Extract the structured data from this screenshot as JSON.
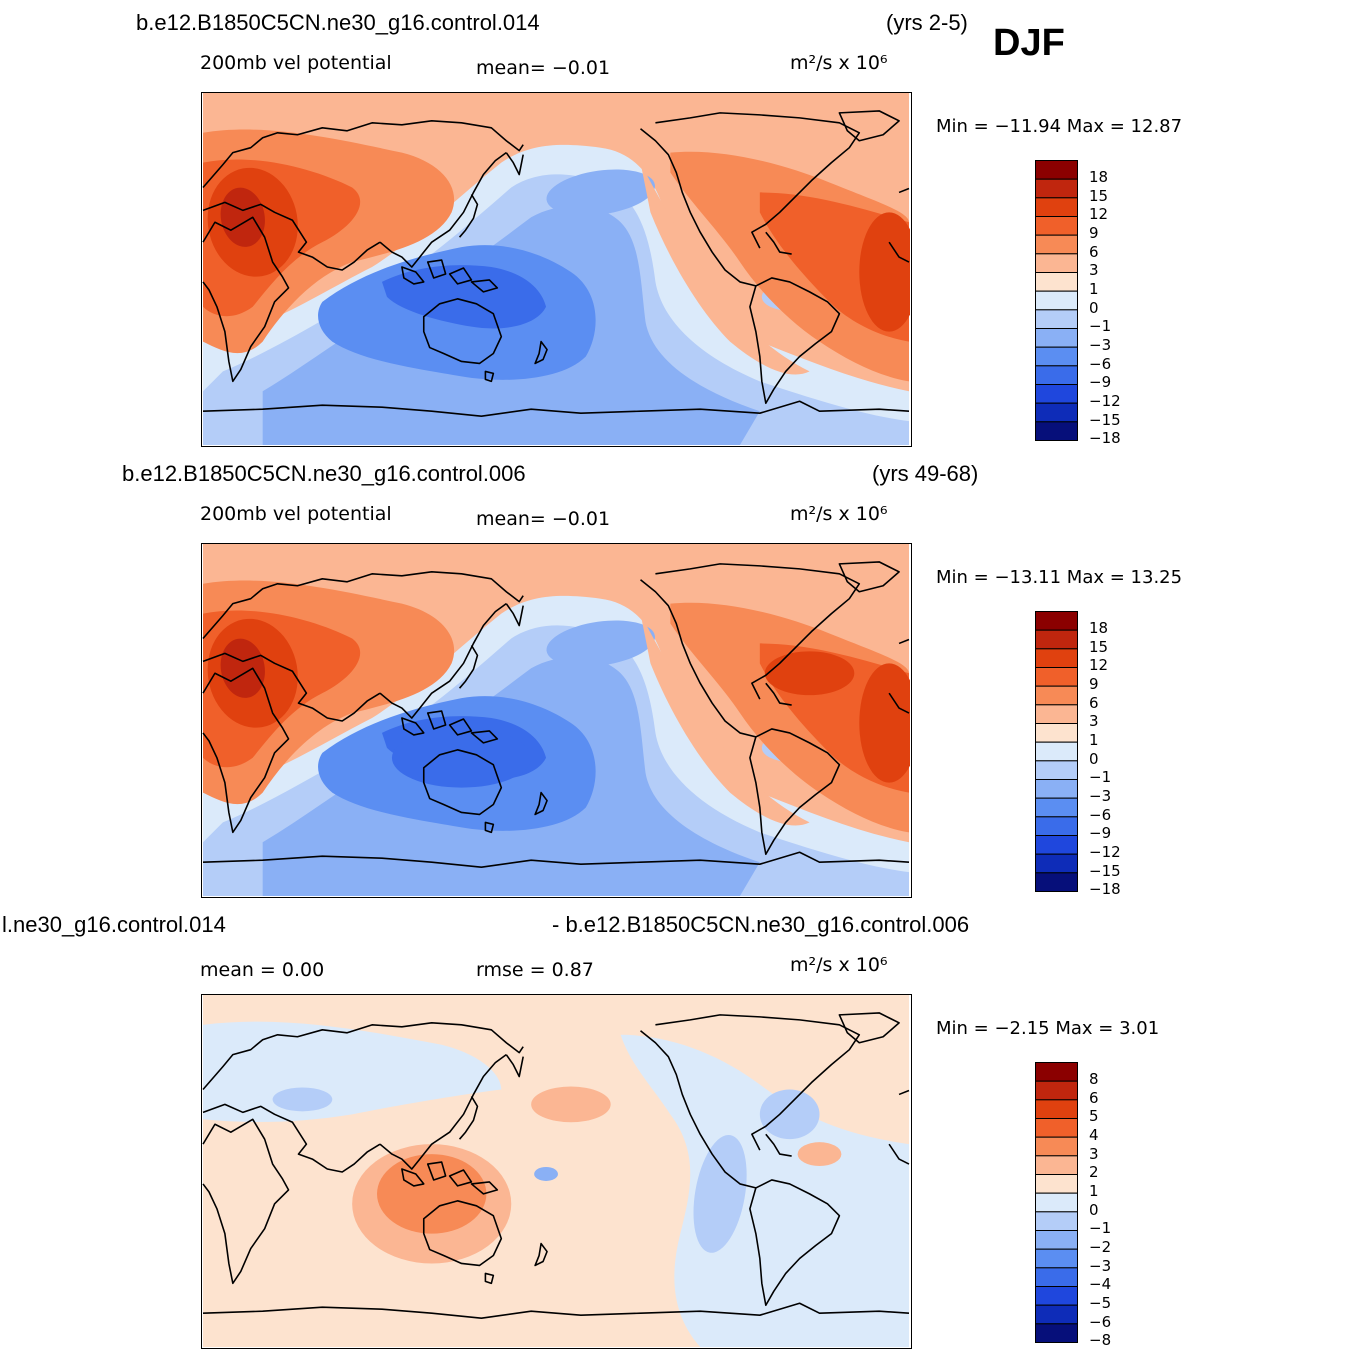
{
  "season": "DJF",
  "panels": [
    {
      "case": "b.e12.B1850C5CN.ne30_g16.control.014",
      "years": "(yrs 2-5)",
      "variable": "200mb vel potential",
      "stat1": "mean=  −0.01",
      "stat2": "",
      "units": "m²/s x 10⁶",
      "minmax": "Min = −11.94 Max =  12.87",
      "levels": [
        "18",
        "15",
        "12",
        "9",
        "6",
        "3",
        "1",
        "0",
        "−1",
        "−3",
        "−6",
        "−9",
        "−12",
        "−15",
        "−18"
      ]
    },
    {
      "case": "b.e12.B1850C5CN.ne30_g16.control.006",
      "years": "(yrs 49-68)",
      "variable": "200mb vel potential",
      "stat1": "mean=  −0.01",
      "stat2": "",
      "units": "m²/s x 10⁶",
      "minmax": "Min = −13.11 Max =  13.25",
      "levels": [
        "18",
        "15",
        "12",
        "9",
        "6",
        "3",
        "1",
        "0",
        "−1",
        "−3",
        "−6",
        "−9",
        "−12",
        "−15",
        "−18"
      ]
    },
    {
      "case": "l.ne30_g16.control.014",
      "years": "- b.e12.B1850C5CN.ne30_g16.control.006",
      "variable": "mean =   0.00",
      "stat1": "rmse =   0.87",
      "stat2": "",
      "units": "m²/s x 10⁶",
      "minmax": "Min =  −2.15 Max =   3.01",
      "levels": [
        "8",
        "6",
        "5",
        "4",
        "3",
        "2",
        "1",
        "0",
        "−1",
        "−2",
        "−3",
        "−4",
        "−5",
        "−6",
        "−8"
      ]
    }
  ],
  "colors": {
    "scale": [
      "#8b0000",
      "#c0260e",
      "#e0410f",
      "#f0602a",
      "#f78a56",
      "#fbb693",
      "#fde3cf",
      "#dbeafa",
      "#b4cdf8",
      "#8ab0f5",
      "#5b8ef2",
      "#3a6cea",
      "#1f47dd",
      "#0e2cb8",
      "#060f7a"
    ],
    "coast": "#000000"
  },
  "chart_data": [
    {
      "type": "heatmap",
      "title": "200mb vel potential",
      "case": "b.e12.B1850C5CN.ne30_g16.control.014",
      "period": "(yrs 2-5)",
      "season": "DJF",
      "units": "m²/s x 10⁶",
      "mean": -0.01,
      "min": -11.94,
      "max": 12.87,
      "contour_levels": [
        -18,
        -15,
        -12,
        -9,
        -6,
        -3,
        -1,
        0,
        1,
        3,
        6,
        9,
        12,
        15,
        18
      ]
    },
    {
      "type": "heatmap",
      "title": "200mb vel potential",
      "case": "b.e12.B1850C5CN.ne30_g16.control.006",
      "period": "(yrs 49-68)",
      "season": "DJF",
      "units": "m²/s x 10⁶",
      "mean": -0.01,
      "min": -13.11,
      "max": 13.25,
      "contour_levels": [
        -18,
        -15,
        -12,
        -9,
        -6,
        -3,
        -1,
        0,
        1,
        3,
        6,
        9,
        12,
        15,
        18
      ]
    },
    {
      "type": "heatmap",
      "title": "",
      "case": "l.ne30_g16.control.014 - b.e12.B1850C5CN.ne30_g16.control.006",
      "season": "DJF",
      "units": "m²/s x 10⁶",
      "mean": 0.0,
      "rmse": 0.87,
      "min": -2.15,
      "max": 3.01,
      "contour_levels": [
        -8,
        -6,
        -5,
        -4,
        -3,
        -2,
        -1,
        0,
        1,
        2,
        3,
        4,
        5,
        6,
        8
      ]
    }
  ]
}
